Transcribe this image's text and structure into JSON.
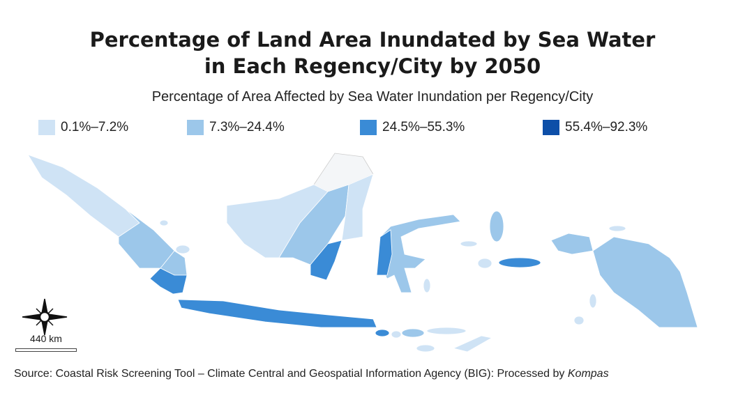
{
  "title_line1": "Percentage of Land Area Inundated by Sea Water",
  "title_line2": "in Each Regency/City by 2050",
  "subtitle": "Percentage of Area Affected by Sea Water Inundation per Regency/City",
  "legend": [
    {
      "label": "0.1%–7.2%",
      "color": "#cfe3f5"
    },
    {
      "label": "7.3%–24.4%",
      "color": "#9cc7ea"
    },
    {
      "label": "24.5%–55.3%",
      "color": "#3a8bd6"
    },
    {
      "label": "55.4%–92.3%",
      "color": "#0d4fa8"
    }
  ],
  "scale_label": "440 km",
  "source_text": "Source: Coastal Risk Screening Tool – Climate Central and Geospatial Information Agency (BIG): Processed by ",
  "source_publisher": "Kompas"
}
